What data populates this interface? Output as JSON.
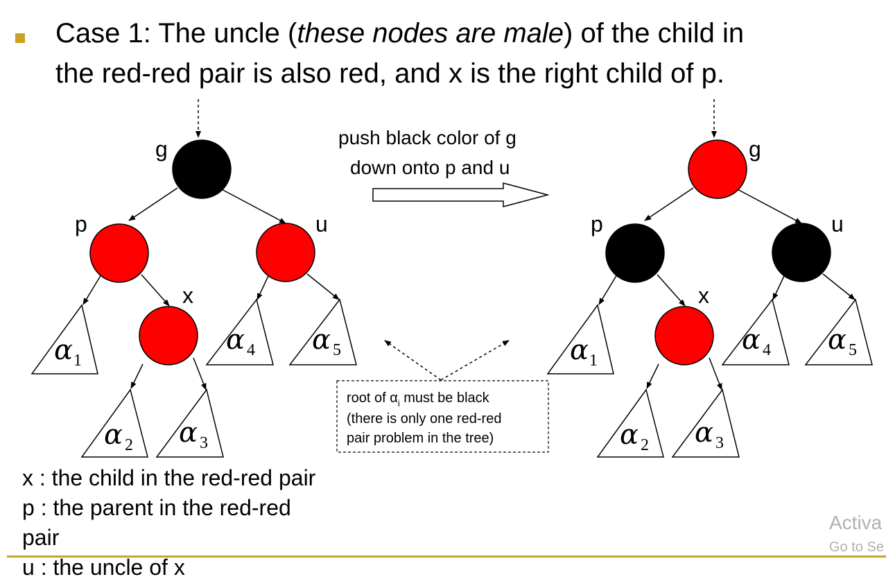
{
  "heading": {
    "line1_before": "Case 1: The uncle (",
    "line1_italic": "these nodes are male",
    "line1_after": ") of the child in",
    "line2": "the red-red pair is also red, and x is the right child of p."
  },
  "transform_note": {
    "line1": "push black color of g",
    "line2": "down onto p and u"
  },
  "box_note": {
    "line1_before": "root of α",
    "line1_sub": "i",
    "line1_after": " must be black",
    "line2": "(there is only one red-red",
    "line3": "pair problem in the tree)"
  },
  "node_labels": {
    "g": "g",
    "p": "p",
    "u": "u",
    "x": "x"
  },
  "subtree_labels": {
    "symbol": "α",
    "a1": "1",
    "a2": "2",
    "a3": "3",
    "a4": "4",
    "a5": "5"
  },
  "legend": {
    "x": "x : the child in the red-red pair",
    "p_line1": "p : the parent in the red-red",
    "p_line2": "pair",
    "u": "u : the uncle of x"
  },
  "watermark": {
    "line1": "Activa",
    "line2": "Go to Se"
  },
  "colors": {
    "red": "#ff0000",
    "black": "#000000",
    "accent": "#c9a227"
  }
}
